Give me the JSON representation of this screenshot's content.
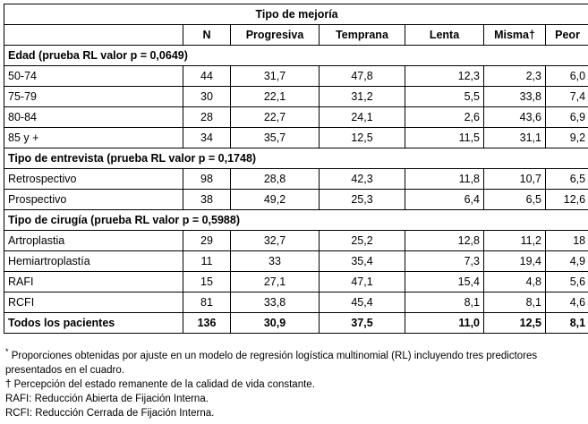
{
  "table": {
    "super_header": "Tipo de mejoría",
    "columns": [
      "N",
      "Progresiva",
      "Temprana",
      "Lenta",
      "Misma†",
      "Peor"
    ],
    "groups": [
      {
        "title": "Edad (prueba RL valor p = 0,0649)",
        "rows": [
          [
            "50-74",
            "44",
            "31,7",
            "47,8",
            "12,3",
            "2,3",
            "6,0"
          ],
          [
            "75-79",
            "30",
            "22,1",
            "31,2",
            "5,5",
            "33,8",
            "7,4"
          ],
          [
            "80-84",
            "28",
            "22,7",
            "24,1",
            "2,6",
            "43,6",
            "6,9"
          ],
          [
            "85 y +",
            "34",
            "35,7",
            "12,5",
            "11,5",
            "31,1",
            "9,2"
          ]
        ]
      },
      {
        "title": "Tipo de entrevista (prueba RL valor p = 0,1748)",
        "rows": [
          [
            "Retrospectivo",
            "98",
            "28,8",
            "42,3",
            "11,8",
            "10,7",
            "6,5"
          ],
          [
            "Prospectivo",
            "38",
            "49,2",
            "25,3",
            "6,4",
            "6,5",
            "12,6"
          ]
        ]
      },
      {
        "title": "Tipo de cirugía (prueba RL valor p = 0,5988)",
        "rows": [
          [
            "Artroplastia",
            "29",
            "32,7",
            "25,2",
            "12,8",
            "11,2",
            "18"
          ],
          [
            "Hemiartroplastía",
            "11",
            "33",
            "35,4",
            "7,3",
            "19,4",
            "4,9"
          ],
          [
            "RAFI",
            "15",
            "27,1",
            "47,1",
            "15,4",
            "4,8",
            "5,6"
          ],
          [
            "RCFI",
            "81",
            "33,8",
            "45,4",
            "8,1",
            "8,1",
            "4,6"
          ]
        ]
      }
    ],
    "total": [
      "Todos los pacientes",
      "136",
      "30,9",
      "37,5",
      "11,0",
      "12,5",
      "8,1"
    ]
  },
  "notes": [
    {
      "symbol": "*",
      "text": "Proporciones obtenidas por ajuste en un modelo de regresión logística multinomial (RL) incluyendo tres predictores presentados en el cuadro."
    },
    {
      "symbol": "†",
      "text": "Percepción del estado remanente de la calidad de vida constante."
    },
    {
      "text": "RAFI: Reducción Abierta de Fijación Interna."
    },
    {
      "text": "RCFI: Reducción Cerrada de Fijación Interna."
    }
  ]
}
